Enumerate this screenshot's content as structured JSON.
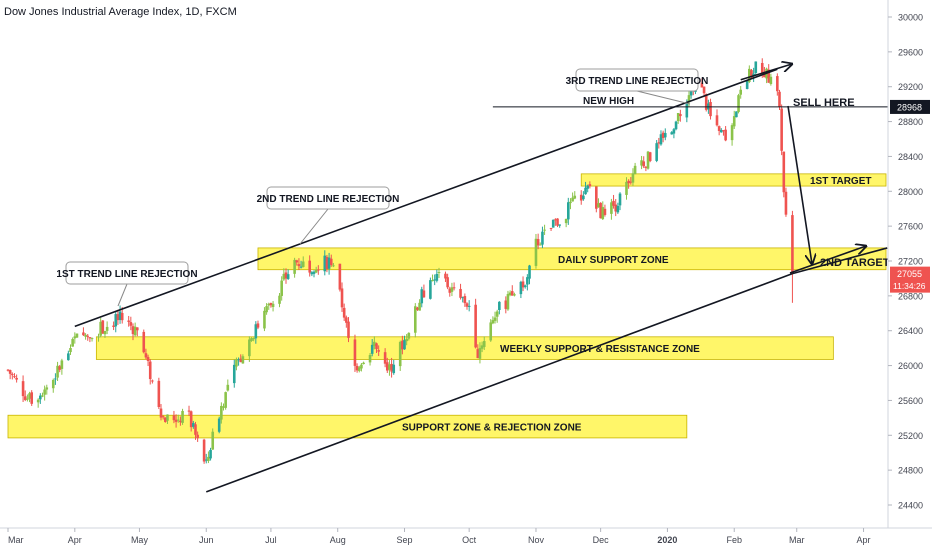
{
  "header": {
    "title": "Dow Jones Industrial Average Index, 1D, FXCM"
  },
  "chart_data": {
    "type": "candlestick",
    "title": "Dow Jones Industrial Average Index, 1D, FXCM",
    "ylim": [
      24250,
      30200
    ],
    "y_ticks": [
      30000,
      29600,
      29200,
      28800,
      28400,
      28000,
      27600,
      27200,
      26800,
      26400,
      26000,
      25600,
      25200,
      24800,
      24400
    ],
    "x_ticks": [
      {
        "label": "Mar",
        "day": 0
      },
      {
        "label": "Apr",
        "day": 31
      },
      {
        "label": "May",
        "day": 61
      },
      {
        "label": "Jun",
        "day": 92
      },
      {
        "label": "Jul",
        "day": 122
      },
      {
        "label": "Aug",
        "day": 153
      },
      {
        "label": "Sep",
        "day": 184
      },
      {
        "label": "Oct",
        "day": 214
      },
      {
        "label": "Nov",
        "day": 245
      },
      {
        "label": "Dec",
        "day": 275
      },
      {
        "label": "2020",
        "day": 306
      },
      {
        "label": "Feb",
        "day": 337
      },
      {
        "label": "Mar",
        "day": 366
      },
      {
        "label": "Apr",
        "day": 397
      }
    ],
    "price_path": [
      [
        0,
        25950
      ],
      [
        10,
        25600
      ],
      [
        20,
        25800
      ],
      [
        31,
        26300
      ],
      [
        45,
        26450
      ],
      [
        52,
        26550
      ],
      [
        60,
        26400
      ],
      [
        72,
        25400
      ],
      [
        84,
        25400
      ],
      [
        92,
        24850
      ],
      [
        96,
        25300
      ],
      [
        104,
        25900
      ],
      [
        112,
        26300
      ],
      [
        122,
        26700
      ],
      [
        133,
        27200
      ],
      [
        140,
        27150
      ],
      [
        150,
        27200
      ],
      [
        156,
        26600
      ],
      [
        160,
        25950
      ],
      [
        170,
        26250
      ],
      [
        176,
        25900
      ],
      [
        184,
        26300
      ],
      [
        192,
        26800
      ],
      [
        200,
        27050
      ],
      [
        208,
        26800
      ],
      [
        214,
        26700
      ],
      [
        218,
        26150
      ],
      [
        226,
        26600
      ],
      [
        234,
        26800
      ],
      [
        240,
        27000
      ],
      [
        245,
        27400
      ],
      [
        255,
        27650
      ],
      [
        262,
        27850
      ],
      [
        270,
        28050
      ],
      [
        275,
        27750
      ],
      [
        282,
        27850
      ],
      [
        290,
        28200
      ],
      [
        300,
        28450
      ],
      [
        306,
        28700
      ],
      [
        312,
        28850
      ],
      [
        318,
        29200
      ],
      [
        322,
        29150
      ],
      [
        328,
        28700
      ],
      [
        334,
        28600
      ],
      [
        340,
        29200
      ],
      [
        348,
        29450
      ],
      [
        354,
        29300
      ],
      [
        358,
        29000
      ],
      [
        360,
        28000
      ],
      [
        362,
        27400
      ],
      [
        364,
        27055
      ]
    ],
    "last_price": "27055",
    "current_price_line": "28968",
    "countdown": "11:34:26",
    "zones": [
      {
        "label": "DAILY SUPPORT ZONE",
        "day_start": 116,
        "day_end": 408,
        "y_low": 27100,
        "y_high": 27350
      },
      {
        "label": "WEEKLY SUPPORT & RESISTANCE ZONE",
        "day_start": 41,
        "day_end": 383,
        "y_low": 26070,
        "y_high": 26330
      },
      {
        "label": "SUPPORT ZONE & REJECTION ZONE",
        "day_start": 0,
        "day_end": 315,
        "y_low": 25170,
        "y_high": 25430
      },
      {
        "label": "1ST TARGET",
        "day_start": 266,
        "day_end": 430,
        "y_low": 28060,
        "y_high": 28200
      }
    ],
    "trend_lines": [
      {
        "from": [
          31,
          26450
        ],
        "to": [
          357,
          29400
        ]
      },
      {
        "from": [
          92,
          24550
        ],
        "to": [
          364,
          27055
        ]
      },
      {
        "from": [
          364,
          27055
        ],
        "to": [
          408,
          27350
        ]
      }
    ],
    "horizontal_lines": [
      {
        "y": 28968,
        "day_start": 225,
        "day_end": 425
      }
    ],
    "arrows": [
      {
        "from": [
          348,
          29450
        ],
        "to": [
          364,
          29450
        ]
      },
      {
        "from": [
          358,
          29000
        ],
        "to": [
          375,
          27150
        ]
      }
    ],
    "annotations": [
      {
        "text": "1ST TREND LINE REJECTION",
        "type": "callout"
      },
      {
        "text": "2ND TREND LINE REJECTION",
        "type": "callout"
      },
      {
        "text": "3RD TREND LINE REJECTION",
        "type": "callout"
      },
      {
        "text": "NEW HIGH",
        "type": "label"
      },
      {
        "text": "SELL HERE",
        "type": "label"
      },
      {
        "text": "2ND TARGET",
        "type": "label"
      }
    ],
    "colors": {
      "up": "#26a69a",
      "up_light": "#8bc34a",
      "down": "#ef5350",
      "zone_fill": "#fff44f",
      "zone_stroke": "#c8b400",
      "last_price_bg": "#ef5350",
      "price_line_bg": "#131722",
      "axis_text": "#434651"
    }
  }
}
